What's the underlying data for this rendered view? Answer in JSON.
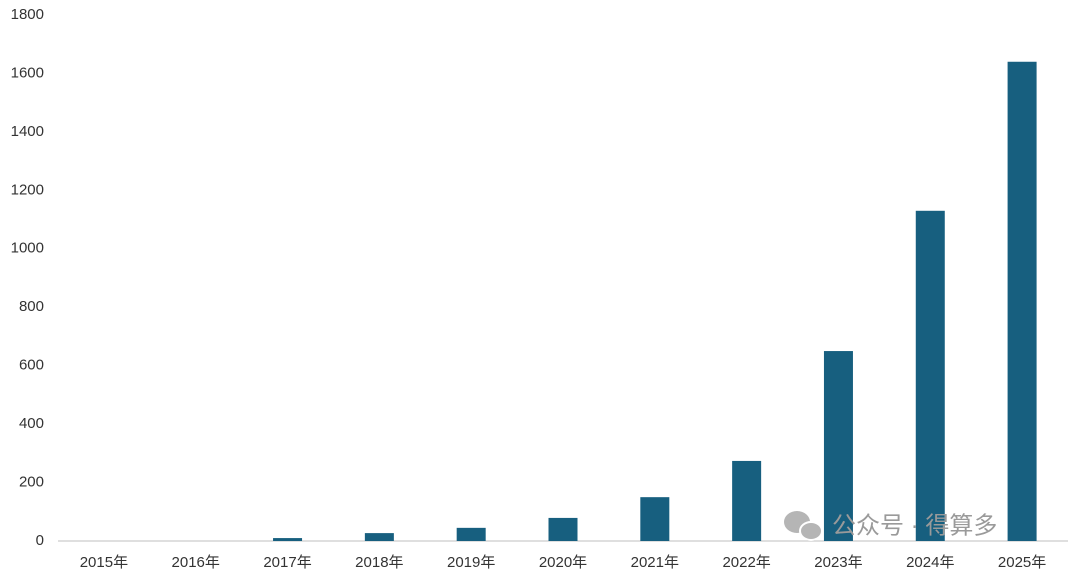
{
  "chart_data": {
    "type": "bar",
    "categories": [
      "2015年",
      "2016年",
      "2017年",
      "2018年",
      "2019年",
      "2020年",
      "2021年",
      "2022年",
      "2023年",
      "2024年",
      "2025年"
    ],
    "values": [
      0,
      0,
      10,
      27,
      45,
      79,
      150,
      274,
      650,
      1130,
      1640
    ],
    "color": "#175f7f",
    "ylim": [
      0,
      1800
    ],
    "yticks": [
      0,
      200,
      400,
      600,
      800,
      1000,
      1200,
      1400,
      1600,
      1800
    ],
    "grid": false,
    "watermark": "公众号 · 得算多"
  }
}
